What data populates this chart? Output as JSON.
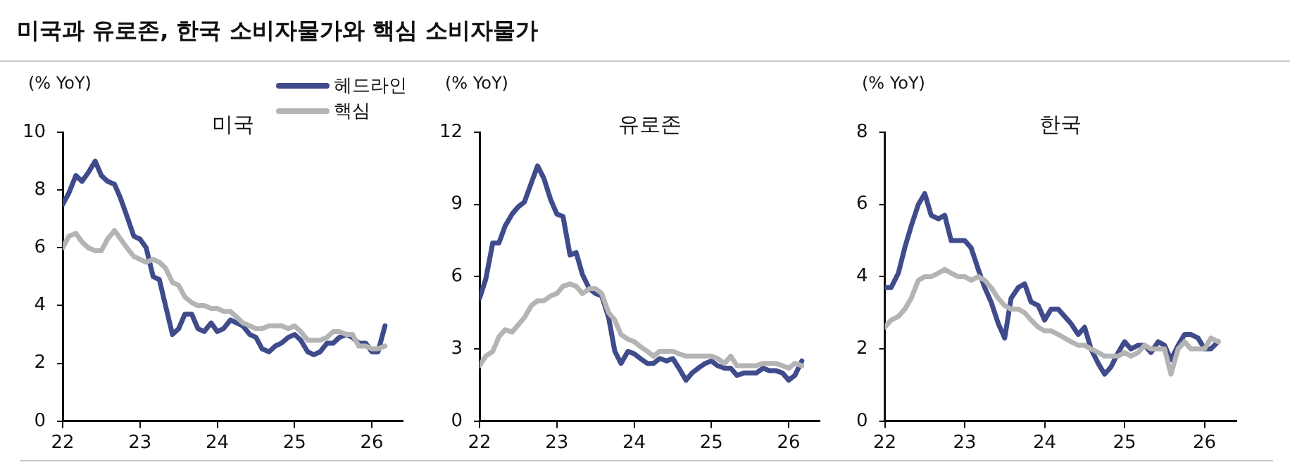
{
  "chart_data": [
    {
      "type": "line",
      "title": "미국",
      "ylabel": "(% YoY)",
      "annotations": [
        "미국과 유로존, 한국 소비자물가와 핵심 소비자물가"
      ],
      "x": [
        22,
        22.08,
        22.17,
        22.25,
        22.33,
        22.42,
        22.5,
        22.58,
        22.67,
        22.75,
        22.83,
        22.92,
        23,
        23.08,
        23.17,
        23.25,
        23.33,
        23.42,
        23.5,
        23.58,
        23.67,
        23.75,
        23.83,
        23.92,
        24,
        24.08,
        24.17,
        24.25,
        24.33,
        24.42,
        24.5,
        24.58,
        24.67,
        24.75,
        24.83,
        24.92,
        25,
        25.08,
        25.17,
        25.25,
        25.33,
        25.42,
        25.5,
        25.58,
        25.67,
        25.75,
        25.83,
        25.92,
        26,
        26.08,
        26.17
      ],
      "series": [
        {
          "name": "헤드라인",
          "color": "#3f4b8a",
          "values": [
            7.5,
            7.9,
            8.5,
            8.3,
            8.6,
            9.0,
            8.5,
            8.3,
            8.2,
            7.7,
            7.1,
            6.4,
            6.3,
            6.0,
            5.0,
            4.9,
            4.0,
            3.0,
            3.2,
            3.7,
            3.7,
            3.2,
            3.1,
            3.4,
            3.1,
            3.2,
            3.5,
            3.4,
            3.3,
            3.0,
            2.9,
            2.5,
            2.4,
            2.6,
            2.7,
            2.9,
            3.0,
            2.8,
            2.4,
            2.3,
            2.4,
            2.7,
            2.7,
            2.9,
            3.0,
            2.9,
            2.7,
            2.7,
            2.4,
            2.4,
            3.3
          ]
        },
        {
          "name": "핵심",
          "color": "#b4b4b4",
          "values": [
            6.0,
            6.4,
            6.5,
            6.2,
            6.0,
            5.9,
            5.9,
            6.3,
            6.6,
            6.3,
            6.0,
            5.7,
            5.6,
            5.5,
            5.6,
            5.5,
            5.3,
            4.8,
            4.7,
            4.3,
            4.1,
            4.0,
            4.0,
            3.9,
            3.9,
            3.8,
            3.8,
            3.6,
            3.4,
            3.3,
            3.2,
            3.2,
            3.3,
            3.3,
            3.3,
            3.2,
            3.3,
            3.1,
            2.8,
            2.8,
            2.8,
            2.9,
            3.1,
            3.1,
            3.0,
            3.0,
            2.6,
            2.6,
            2.5,
            2.5,
            2.6
          ]
        }
      ],
      "xlim": [
        22,
        26.4
      ],
      "xticks": [
        22,
        23,
        24,
        25,
        26
      ],
      "ylim": [
        0,
        10
      ],
      "yticks": [
        0,
        2,
        4,
        6,
        8,
        10
      ],
      "grid": false,
      "legend": "top right",
      "marker": "none",
      "line_style": "solid"
    },
    {
      "type": "line",
      "title": "유로존",
      "ylabel": "(% YoY)",
      "x": [
        22,
        22.08,
        22.17,
        22.25,
        22.33,
        22.42,
        22.5,
        22.58,
        22.67,
        22.75,
        22.83,
        22.92,
        23,
        23.08,
        23.17,
        23.25,
        23.33,
        23.42,
        23.5,
        23.58,
        23.67,
        23.75,
        23.83,
        23.92,
        24,
        24.08,
        24.17,
        24.25,
        24.33,
        24.42,
        24.5,
        24.58,
        24.67,
        24.75,
        24.83,
        24.92,
        25,
        25.08,
        25.17,
        25.25,
        25.33,
        25.42,
        25.5,
        25.58,
        25.67,
        25.75,
        25.83,
        25.92,
        26,
        26.08,
        26.17
      ],
      "series": [
        {
          "color": "#3f4b8a",
          "values": [
            5.1,
            5.9,
            7.4,
            7.4,
            8.1,
            8.6,
            8.9,
            9.1,
            9.9,
            10.6,
            10.1,
            9.2,
            8.6,
            8.5,
            6.9,
            7.0,
            6.1,
            5.5,
            5.3,
            5.2,
            4.3,
            2.9,
            2.4,
            2.9,
            2.8,
            2.6,
            2.4,
            2.4,
            2.6,
            2.5,
            2.6,
            2.2,
            1.7,
            2.0,
            2.2,
            2.4,
            2.5,
            2.3,
            2.2,
            2.2,
            1.9,
            2.0,
            2.0,
            2.0,
            2.2,
            2.1,
            2.1,
            2.0,
            1.7,
            1.9,
            2.5
          ]
        },
        {
          "color": "#b4b4b4",
          "values": [
            2.3,
            2.7,
            2.9,
            3.5,
            3.8,
            3.7,
            4.0,
            4.3,
            4.8,
            5.0,
            5.0,
            5.2,
            5.3,
            5.6,
            5.7,
            5.6,
            5.3,
            5.5,
            5.5,
            5.3,
            4.5,
            4.2,
            3.6,
            3.4,
            3.3,
            3.1,
            2.9,
            2.7,
            2.9,
            2.9,
            2.9,
            2.8,
            2.7,
            2.7,
            2.7,
            2.7,
            2.7,
            2.6,
            2.4,
            2.7,
            2.3,
            2.3,
            2.3,
            2.3,
            2.4,
            2.4,
            2.4,
            2.3,
            2.2,
            2.4,
            2.3
          ]
        }
      ],
      "xlim": [
        22,
        26.4
      ],
      "xticks": [
        22,
        23,
        24,
        25,
        26
      ],
      "ylim": [
        0,
        12
      ],
      "yticks": [
        0,
        3,
        6,
        9,
        12
      ],
      "grid": false,
      "marker": "none",
      "line_style": "solid"
    },
    {
      "type": "line",
      "title": "한국",
      "ylabel": "(% YoY)",
      "x": [
        22,
        22.08,
        22.17,
        22.25,
        22.33,
        22.42,
        22.5,
        22.58,
        22.67,
        22.75,
        22.83,
        22.92,
        23,
        23.08,
        23.17,
        23.25,
        23.33,
        23.42,
        23.5,
        23.58,
        23.67,
        23.75,
        23.83,
        23.92,
        24,
        24.08,
        24.17,
        24.25,
        24.33,
        24.42,
        24.5,
        24.58,
        24.67,
        24.75,
        24.83,
        24.92,
        25,
        25.08,
        25.17,
        25.25,
        25.33,
        25.42,
        25.5,
        25.58,
        25.67,
        25.75,
        25.83,
        25.92,
        26,
        26.08,
        26.17
      ],
      "series": [
        {
          "color": "#3f4b8a",
          "values": [
            3.7,
            3.7,
            4.1,
            4.8,
            5.4,
            6.0,
            6.3,
            5.7,
            5.6,
            5.7,
            5.0,
            5.0,
            5.0,
            4.8,
            4.2,
            3.7,
            3.3,
            2.7,
            2.3,
            3.4,
            3.7,
            3.8,
            3.3,
            3.2,
            2.8,
            3.1,
            3.1,
            2.9,
            2.7,
            2.4,
            2.6,
            2.0,
            1.6,
            1.3,
            1.5,
            1.9,
            2.2,
            2.0,
            2.1,
            2.1,
            1.9,
            2.2,
            2.1,
            1.7,
            2.1,
            2.4,
            2.4,
            2.3,
            2.0,
            2.0,
            2.2
          ]
        },
        {
          "color": "#b4b4b4",
          "values": [
            2.6,
            2.8,
            2.9,
            3.1,
            3.4,
            3.9,
            4.0,
            4.0,
            4.1,
            4.2,
            4.1,
            4.0,
            4.0,
            3.9,
            4.0,
            3.9,
            3.7,
            3.4,
            3.2,
            3.1,
            3.1,
            3.0,
            2.8,
            2.6,
            2.5,
            2.5,
            2.4,
            2.3,
            2.2,
            2.1,
            2.1,
            2.0,
            1.9,
            1.8,
            1.8,
            1.8,
            1.9,
            1.8,
            1.9,
            2.1,
            2.0,
            2.0,
            2.0,
            1.3,
            2.0,
            2.2,
            2.0,
            2.0,
            2.0,
            2.3,
            2.2
          ]
        }
      ],
      "xlim": [
        22,
        26.4
      ],
      "xticks": [
        22,
        23,
        24,
        25,
        26
      ],
      "ylim": [
        0,
        8
      ],
      "yticks": [
        0,
        2,
        4,
        6,
        8
      ],
      "grid": false,
      "marker": "none",
      "line_style": "solid"
    }
  ]
}
